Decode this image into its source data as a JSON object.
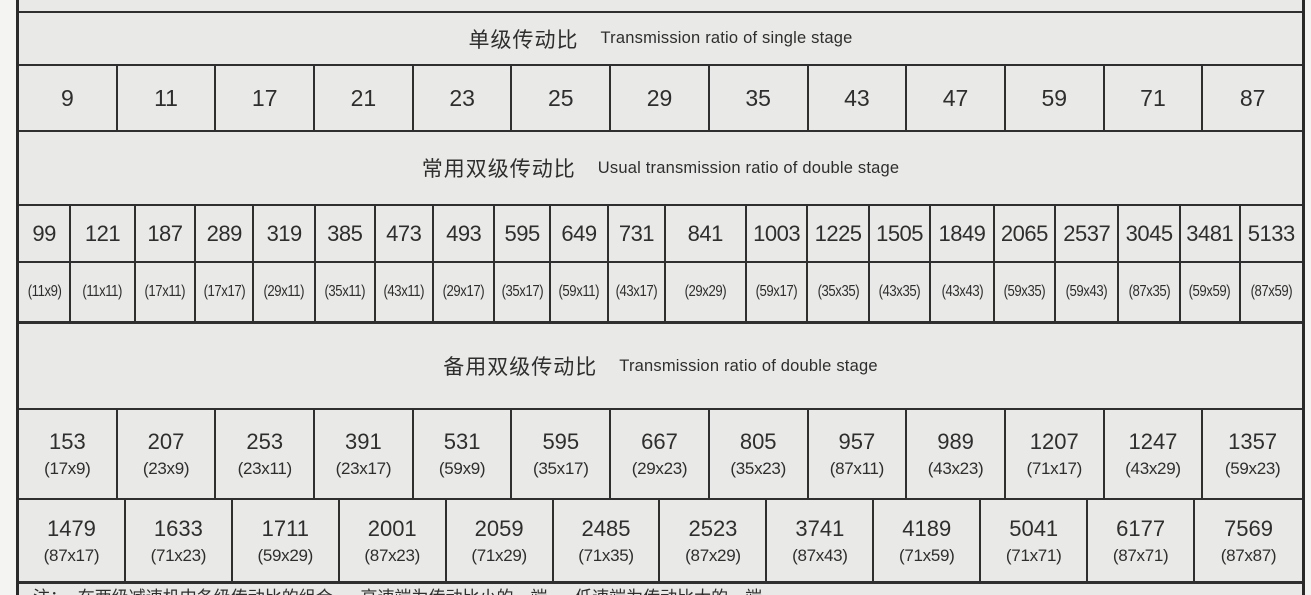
{
  "colors": {
    "page_background": "#f4f4f2",
    "table_background": "#e9e9e7",
    "grid_line": "#2f2f2f",
    "text": "#2e2e2e"
  },
  "single_stage": {
    "title_zh": "单级传动比",
    "title_en": "Transmission ratio of single stage",
    "ratios": [
      "9",
      "11",
      "17",
      "21",
      "23",
      "25",
      "29",
      "35",
      "43",
      "47",
      "59",
      "71",
      "87"
    ]
  },
  "usual_double": {
    "title_zh": "常用双级传动比",
    "title_en": "Usual transmission ratio of double stage",
    "items": [
      {
        "ratio": "99",
        "combo": "(11x9)"
      },
      {
        "ratio": "121",
        "combo": "(11x11)"
      },
      {
        "ratio": "187",
        "combo": "(17x11)"
      },
      {
        "ratio": "289",
        "combo": "(17x17)"
      },
      {
        "ratio": "319",
        "combo": "(29x11)"
      },
      {
        "ratio": "385",
        "combo": "(35x11)"
      },
      {
        "ratio": "473",
        "combo": "(43x11)"
      },
      {
        "ratio": "493",
        "combo": "(29x17)"
      },
      {
        "ratio": "595",
        "combo": "(35x17)"
      },
      {
        "ratio": "649",
        "combo": "(59x11)"
      },
      {
        "ratio": "731",
        "combo": "(43x17)"
      },
      {
        "ratio": "841",
        "combo": "(29x29)"
      },
      {
        "ratio": "1003",
        "combo": "(59x17)"
      },
      {
        "ratio": "1225",
        "combo": "(35x35)"
      },
      {
        "ratio": "1505",
        "combo": "(43x35)"
      },
      {
        "ratio": "1849",
        "combo": "(43x43)"
      },
      {
        "ratio": "2065",
        "combo": "(59x35)"
      },
      {
        "ratio": "2537",
        "combo": "(59x43)"
      },
      {
        "ratio": "3045",
        "combo": "(87x35)"
      },
      {
        "ratio": "3481",
        "combo": "(59x59)"
      },
      {
        "ratio": "5133",
        "combo": "(87x59)"
      }
    ]
  },
  "reserve_double": {
    "title_zh": "备用双级传动比",
    "title_en": "Transmission ratio of double stage",
    "row1": [
      {
        "ratio": "153",
        "combo": "(17x9)"
      },
      {
        "ratio": "207",
        "combo": "(23x9)"
      },
      {
        "ratio": "253",
        "combo": "(23x11)"
      },
      {
        "ratio": "391",
        "combo": "(23x17)"
      },
      {
        "ratio": "531",
        "combo": "(59x9)"
      },
      {
        "ratio": "595",
        "combo": "(35x17)"
      },
      {
        "ratio": "667",
        "combo": "(29x23)"
      },
      {
        "ratio": "805",
        "combo": "(35x23)"
      },
      {
        "ratio": "957",
        "combo": "(87x11)"
      },
      {
        "ratio": "989",
        "combo": "(43x23)"
      },
      {
        "ratio": "1207",
        "combo": "(71x17)"
      },
      {
        "ratio": "1247",
        "combo": "(43x29)"
      },
      {
        "ratio": "1357",
        "combo": "(59x23)"
      }
    ],
    "row2": [
      {
        "ratio": "1479",
        "combo": "(87x17)"
      },
      {
        "ratio": "1633",
        "combo": "(71x23)"
      },
      {
        "ratio": "1711",
        "combo": "(59x29)"
      },
      {
        "ratio": "2001",
        "combo": "(87x23)"
      },
      {
        "ratio": "2059",
        "combo": "(71x29)"
      },
      {
        "ratio": "2485",
        "combo": "(71x35)"
      },
      {
        "ratio": "2523",
        "combo": "(87x29)"
      },
      {
        "ratio": "3741",
        "combo": "(87x43)"
      },
      {
        "ratio": "4189",
        "combo": "(71x59)"
      },
      {
        "ratio": "5041",
        "combo": "(71x71)"
      },
      {
        "ratio": "6177",
        "combo": "(87x71)"
      },
      {
        "ratio": "7569",
        "combo": "(87x87)"
      }
    ]
  },
  "note": {
    "clipped_text": "注：  在两级减速机中各级传动比的组合，  高速端为传动比小的一端，  低速端为传动比大的一端"
  }
}
